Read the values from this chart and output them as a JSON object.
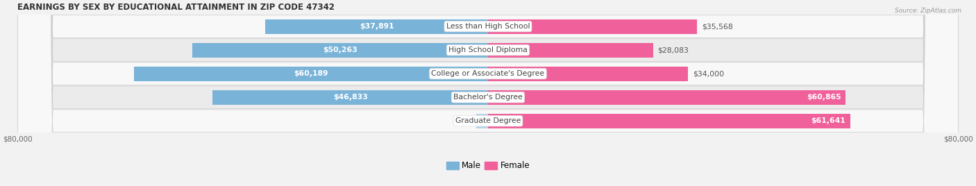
{
  "title": "EARNINGS BY SEX BY EDUCATIONAL ATTAINMENT IN ZIP CODE 47342",
  "source": "Source: ZipAtlas.com",
  "categories": [
    "Less than High School",
    "High School Diploma",
    "College or Associate's Degree",
    "Bachelor's Degree",
    "Graduate Degree"
  ],
  "male_values": [
    37891,
    50263,
    60189,
    46833,
    0
  ],
  "female_values": [
    35568,
    28083,
    34000,
    60865,
    61641
  ],
  "male_color": "#7ab3d8",
  "male_color_light": "#b8d4e8",
  "female_color": "#f0609a",
  "female_color_light": "#f4a8c8",
  "axis_max": 80000,
  "bar_height": 0.62,
  "background_color": "#f2f2f2",
  "row_bg_light": "#f8f8f8",
  "row_bg_dark": "#ebebeb",
  "title_bg": "#ffffff",
  "label_fontsize": 7.8,
  "title_fontsize": 8.5,
  "tick_label_fontsize": 7.5,
  "legend_fontsize": 8.5
}
